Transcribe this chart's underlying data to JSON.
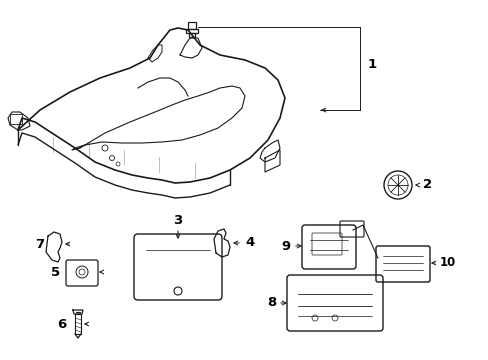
{
  "background_color": "#ffffff",
  "line_color": "#1a1a1a",
  "text_color": "#000000",
  "fig_width": 4.89,
  "fig_height": 3.6,
  "dpi": 100,
  "label_fontsize": 8.5
}
